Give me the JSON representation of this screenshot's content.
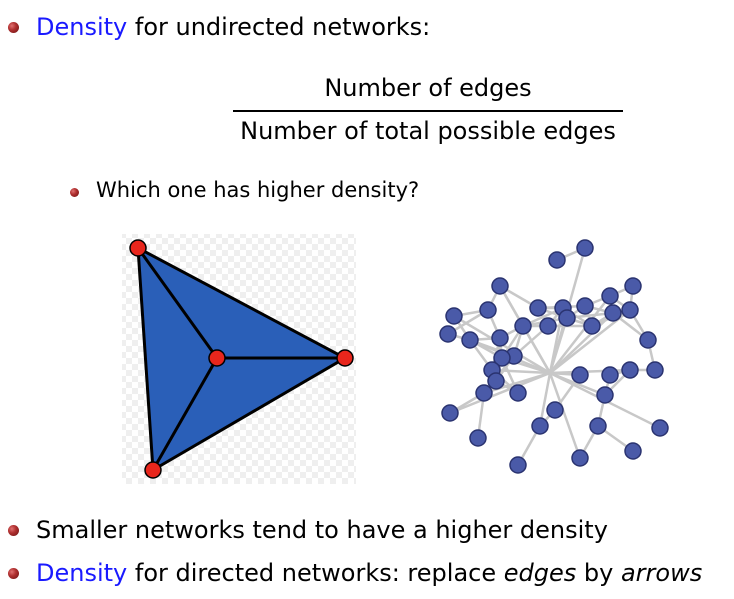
{
  "bullet1": {
    "term": "Density",
    "rest": " for undirected networks:"
  },
  "formula": {
    "numerator": "Number of edges",
    "denominator": "Number of total possible edges"
  },
  "sub_bullet": {
    "text": "Which one has higher density?"
  },
  "bullet2": {
    "text": "Smaller networks tend to have a higher density"
  },
  "bullet3": {
    "term": "Density",
    "middle": " for directed networks:  replace ",
    "em1": "edges",
    "by": " by ",
    "em2": "arrows"
  },
  "colors": {
    "accent": "#1a1aff",
    "triangle_fill": "#2a5fb8",
    "node_red": "#e8261c",
    "node_blue": "#4a5aa8",
    "edge_gray": "#c8c8c8"
  }
}
